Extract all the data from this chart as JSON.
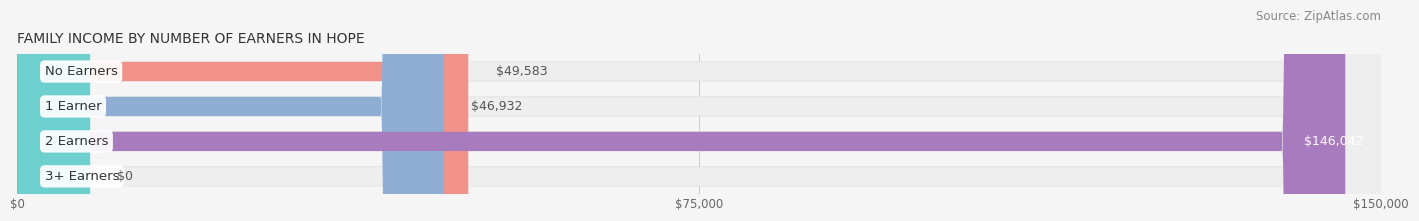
{
  "title": "FAMILY INCOME BY NUMBER OF EARNERS IN HOPE",
  "source": "Source: ZipAtlas.com",
  "categories": [
    "No Earners",
    "1 Earner",
    "2 Earners",
    "3+ Earners"
  ],
  "values": [
    49583,
    46932,
    146042,
    0
  ],
  "bar_colors": [
    "#f0928a",
    "#90aed4",
    "#a87bbf",
    "#6ecfcf"
  ],
  "value_labels": [
    "$49,583",
    "$46,932",
    "$146,042",
    "$0"
  ],
  "value_label_inside": [
    false,
    false,
    true,
    false
  ],
  "xlim": [
    0,
    150000
  ],
  "xticks": [
    0,
    75000,
    150000
  ],
  "xtick_labels": [
    "$0",
    "$75,000",
    "$150,000"
  ],
  "bar_height": 0.55,
  "background_color": "#f5f5f5",
  "title_fontsize": 10,
  "source_fontsize": 8.5,
  "label_fontsize": 9.5,
  "value_fontsize": 9
}
